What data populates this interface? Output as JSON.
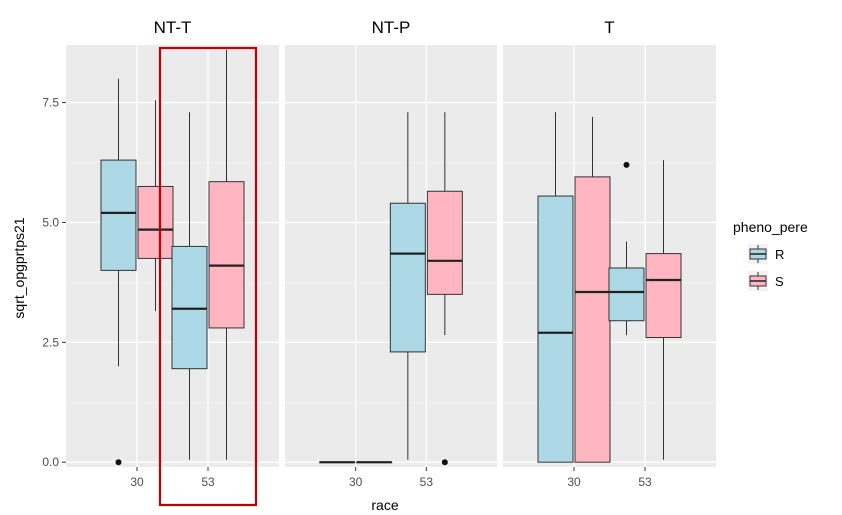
{
  "chart_data": {
    "type": "boxplot",
    "xlabel": "race",
    "ylabel": "sqrt_opgprtps21",
    "ylim": [
      -0.1,
      8.7
    ],
    "yticks": [
      0.0,
      2.5,
      5.0,
      7.5
    ],
    "ytick_labels": [
      "0.0",
      "2.5",
      "5.0",
      "7.5"
    ],
    "grid": true,
    "facets": [
      "NT-T",
      "NT-P",
      "T"
    ],
    "categories": [
      "30",
      "53"
    ],
    "legend": {
      "title": "pheno_pere",
      "position": "right",
      "entries": [
        {
          "label": "R",
          "color": "#add8e6"
        },
        {
          "label": "S",
          "color": "#ffb6c1"
        }
      ]
    },
    "highlight": {
      "facet": "NT-T",
      "category": "53",
      "color": "#c00000"
    },
    "boxes": [
      {
        "facet": "NT-T",
        "race": "30",
        "group": "R",
        "min": 2.0,
        "q1": 4.0,
        "median": 5.2,
        "q3": 6.3,
        "max": 8.0,
        "outliers": [
          0.0
        ]
      },
      {
        "facet": "NT-T",
        "race": "30",
        "group": "S",
        "min": 3.15,
        "q1": 4.25,
        "median": 4.85,
        "q3": 5.75,
        "max": 7.55,
        "outliers": []
      },
      {
        "facet": "NT-T",
        "race": "53",
        "group": "R",
        "min": 0.05,
        "q1": 1.95,
        "median": 3.2,
        "q3": 4.5,
        "max": 7.3,
        "outliers": []
      },
      {
        "facet": "NT-T",
        "race": "53",
        "group": "S",
        "min": 0.05,
        "q1": 2.8,
        "median": 4.1,
        "q3": 5.85,
        "max": 8.6,
        "outliers": []
      },
      {
        "facet": "NT-P",
        "race": "30",
        "group": "R",
        "min": 0.0,
        "q1": 0.0,
        "median": 0.0,
        "q3": 0.0,
        "max": 0.0,
        "outliers": []
      },
      {
        "facet": "NT-P",
        "race": "30",
        "group": "S",
        "min": 0.0,
        "q1": 0.0,
        "median": 0.0,
        "q3": 0.0,
        "max": 0.0,
        "outliers": []
      },
      {
        "facet": "NT-P",
        "race": "53",
        "group": "R",
        "min": 0.05,
        "q1": 2.3,
        "median": 4.35,
        "q3": 5.4,
        "max": 7.3,
        "outliers": []
      },
      {
        "facet": "NT-P",
        "race": "53",
        "group": "S",
        "min": 2.65,
        "q1": 3.5,
        "median": 4.2,
        "q3": 5.65,
        "max": 7.3,
        "outliers": [
          0.0
        ]
      },
      {
        "facet": "T",
        "race": "30",
        "group": "R",
        "min": 0.0,
        "q1": 0.0,
        "median": 2.7,
        "q3": 5.55,
        "max": 7.3,
        "outliers": []
      },
      {
        "facet": "T",
        "race": "30",
        "group": "S",
        "min": 0.0,
        "q1": 0.0,
        "median": 3.55,
        "q3": 5.95,
        "max": 7.2,
        "outliers": []
      },
      {
        "facet": "T",
        "race": "53",
        "group": "R",
        "min": 2.65,
        "q1": 2.95,
        "median": 3.55,
        "q3": 4.05,
        "max": 4.6,
        "outliers": [
          6.2
        ]
      },
      {
        "facet": "T",
        "race": "53",
        "group": "S",
        "min": 0.05,
        "q1": 2.6,
        "median": 3.8,
        "q3": 4.35,
        "max": 6.3,
        "outliers": []
      }
    ]
  }
}
